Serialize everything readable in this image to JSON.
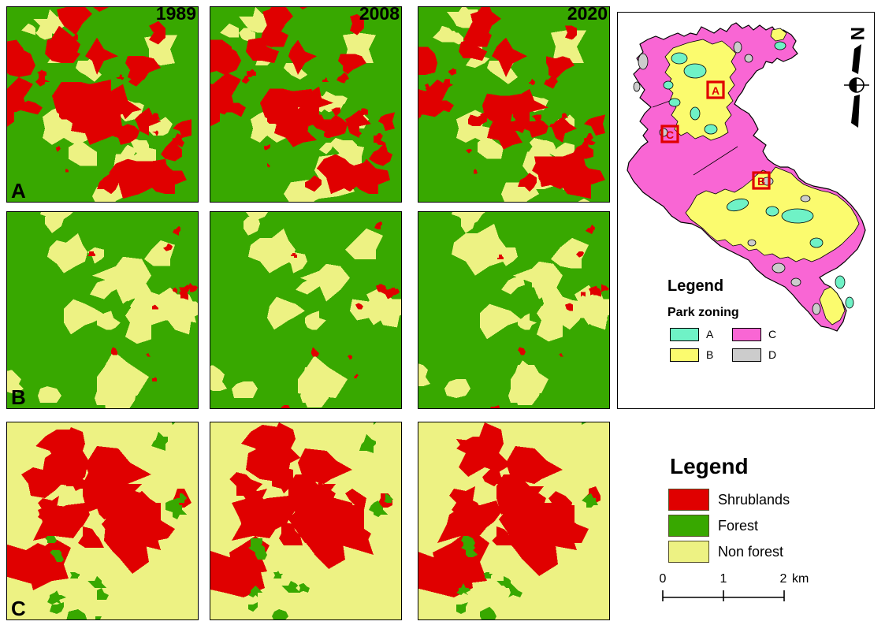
{
  "years": [
    "1989",
    "2008",
    "2020"
  ],
  "rows": [
    {
      "label": "A"
    },
    {
      "label": "B"
    },
    {
      "label": "C"
    }
  ],
  "colors": {
    "forest": "#38A800",
    "shrublands": "#E00000",
    "non_forest": "#EDF283",
    "zone_a": "#6FF2C6",
    "zone_b": "#FBFB6E",
    "zone_c": "#F966D4",
    "zone_d": "#CCCCCC",
    "marker": "#E00000",
    "outline": "#000000"
  },
  "map": {
    "legend_title": "Legend",
    "zoning_title": "Park zoning",
    "zones": [
      {
        "label": "A"
      },
      {
        "label": "B"
      },
      {
        "label": "C"
      },
      {
        "label": "D"
      }
    ],
    "markers": [
      {
        "label": "A"
      },
      {
        "label": "C"
      },
      {
        "label": "B"
      }
    ],
    "north_label": "N"
  },
  "landcover_legend": {
    "title": "Legend",
    "items": [
      {
        "label": "Shrublands"
      },
      {
        "label": "Forest"
      },
      {
        "label": "Non forest"
      }
    ],
    "scalebar": {
      "tick_labels": [
        "0",
        "1",
        "2"
      ],
      "unit": "km"
    }
  },
  "render_hints": {
    "rows": [
      {
        "bg": "forest",
        "groups": [
          {
            "color": "non_forest",
            "count": 20,
            "rmin": 7,
            "rmax": 22,
            "anchors": [
              [
                0.18,
                0.16
              ],
              [
                0.5,
                0.42
              ],
              [
                0.42,
                0.62
              ],
              [
                0.72,
                0.5
              ],
              [
                0.55,
                0.85
              ],
              [
                0.85,
                0.28
              ],
              [
                0.12,
                0.5
              ],
              [
                0.75,
                0.9
              ]
            ]
          },
          {
            "color": "shrublands",
            "count": 32,
            "rmin": 6,
            "rmax": 24,
            "anchors": [
              [
                0.3,
                0.42
              ],
              [
                0.5,
                0.55
              ],
              [
                0.62,
                0.35
              ],
              [
                0.78,
                0.18
              ],
              [
                0.25,
                0.6
              ],
              [
                0.55,
                0.78
              ],
              [
                0.8,
                0.75
              ],
              [
                0.12,
                0.35
              ],
              [
                0.42,
                0.1
              ]
            ]
          },
          {
            "color": "shrublands",
            "count": 14,
            "rmin": 2,
            "rmax": 5,
            "anchors": [
              [
                0.5,
                0.5
              ],
              [
                0.2,
                0.3
              ],
              [
                0.8,
                0.5
              ],
              [
                0.3,
                0.8
              ]
            ]
          }
        ]
      },
      {
        "bg": "forest",
        "groups": [
          {
            "color": "non_forest",
            "count": 20,
            "rmin": 8,
            "rmax": 26,
            "anchors": [
              [
                0.1,
                0.1
              ],
              [
                0.55,
                0.45
              ],
              [
                0.6,
                0.62
              ],
              [
                0.75,
                0.35
              ],
              [
                0.5,
                0.82
              ],
              [
                0.85,
                0.55
              ],
              [
                0.05,
                0.85
              ],
              [
                0.45,
                0.3
              ]
            ]
          },
          {
            "color": "shrublands",
            "count": 13,
            "rmin": 2,
            "rmax": 6,
            "anchors": [
              [
                0.55,
                0.2
              ],
              [
                0.78,
                0.08
              ],
              [
                0.9,
                0.45
              ],
              [
                0.45,
                0.9
              ],
              [
                0.65,
                0.75
              ],
              [
                0.35,
                0.65
              ],
              [
                0.98,
                0.3
              ]
            ]
          }
        ]
      },
      {
        "bg": "non_forest",
        "groups": [
          {
            "color": "shrublands",
            "count": 26,
            "rmin": 10,
            "rmax": 30,
            "anchors": [
              [
                0.3,
                0.45
              ],
              [
                0.5,
                0.5
              ],
              [
                0.2,
                0.22
              ],
              [
                0.45,
                0.12
              ],
              [
                0.65,
                0.3
              ],
              [
                0.6,
                0.65
              ],
              [
                0.15,
                0.7
              ],
              [
                0.75,
                0.5
              ],
              [
                0.35,
                0.85
              ]
            ]
          },
          {
            "color": "forest",
            "count": 15,
            "rmin": 4,
            "rmax": 12,
            "anchors": [
              [
                0.15,
                0.8
              ],
              [
                0.3,
                0.92
              ],
              [
                0.75,
                0.08
              ],
              [
                0.9,
                0.28
              ],
              [
                0.55,
                0.95
              ],
              [
                0.08,
                0.55
              ],
              [
                0.25,
                0.55
              ],
              [
                0.9,
                0.85
              ]
            ]
          }
        ]
      }
    ]
  }
}
